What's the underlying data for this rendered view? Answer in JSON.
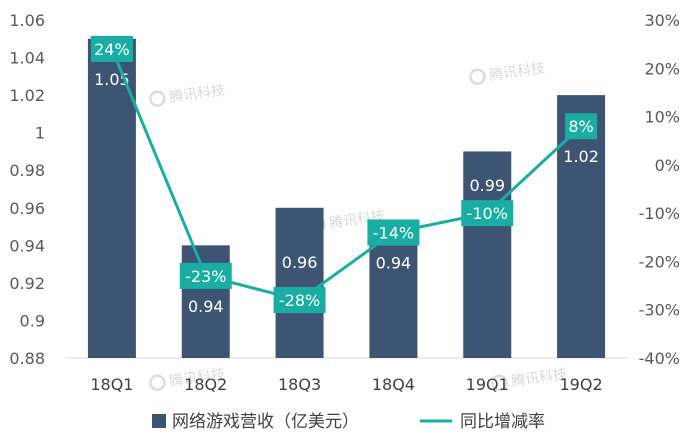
{
  "chart_data": {
    "type": "bar",
    "categories": [
      "18Q1",
      "18Q2",
      "18Q3",
      "18Q4",
      "19Q1",
      "19Q2"
    ],
    "series": [
      {
        "name": "网络游戏营收（亿美元）",
        "type": "bar",
        "axis": "left",
        "values": [
          1.05,
          0.94,
          0.96,
          0.94,
          0.99,
          1.02
        ],
        "labels": [
          "1.05",
          "0.94",
          "0.96",
          "0.94",
          "0.99",
          "1.02"
        ],
        "color": "#3d5573"
      },
      {
        "name": "同比增减率",
        "type": "line",
        "axis": "right",
        "values": [
          24,
          -23,
          -28,
          -14,
          -10,
          8
        ],
        "labels": [
          "24%",
          "-23%",
          "-28%",
          "-14%",
          "-10%",
          "8%"
        ],
        "color": "#1aada3"
      }
    ],
    "y_left": {
      "ylim": [
        0.88,
        1.06
      ],
      "ticks": [
        0.88,
        0.9,
        0.92,
        0.94,
        0.96,
        0.98,
        1,
        1.02,
        1.04,
        1.06
      ],
      "tick_labels": [
        "0.88",
        "0.9",
        "0.92",
        "0.94",
        "0.96",
        "0.98",
        "1",
        "1.02",
        "1.04",
        "1.06"
      ]
    },
    "y_right": {
      "ylim": [
        -40,
        30
      ],
      "ticks": [
        -40,
        -30,
        -20,
        -10,
        0,
        10,
        20,
        30
      ],
      "tick_labels": [
        "-40%",
        "-30%",
        "-20%",
        "-10%",
        "0%",
        "10%",
        "20%",
        "30%"
      ]
    },
    "legend": {
      "position": "bottom",
      "items": [
        "网络游戏营收（亿美元）",
        "同比增减率"
      ]
    },
    "grid": false,
    "watermark": "腾讯科技"
  }
}
